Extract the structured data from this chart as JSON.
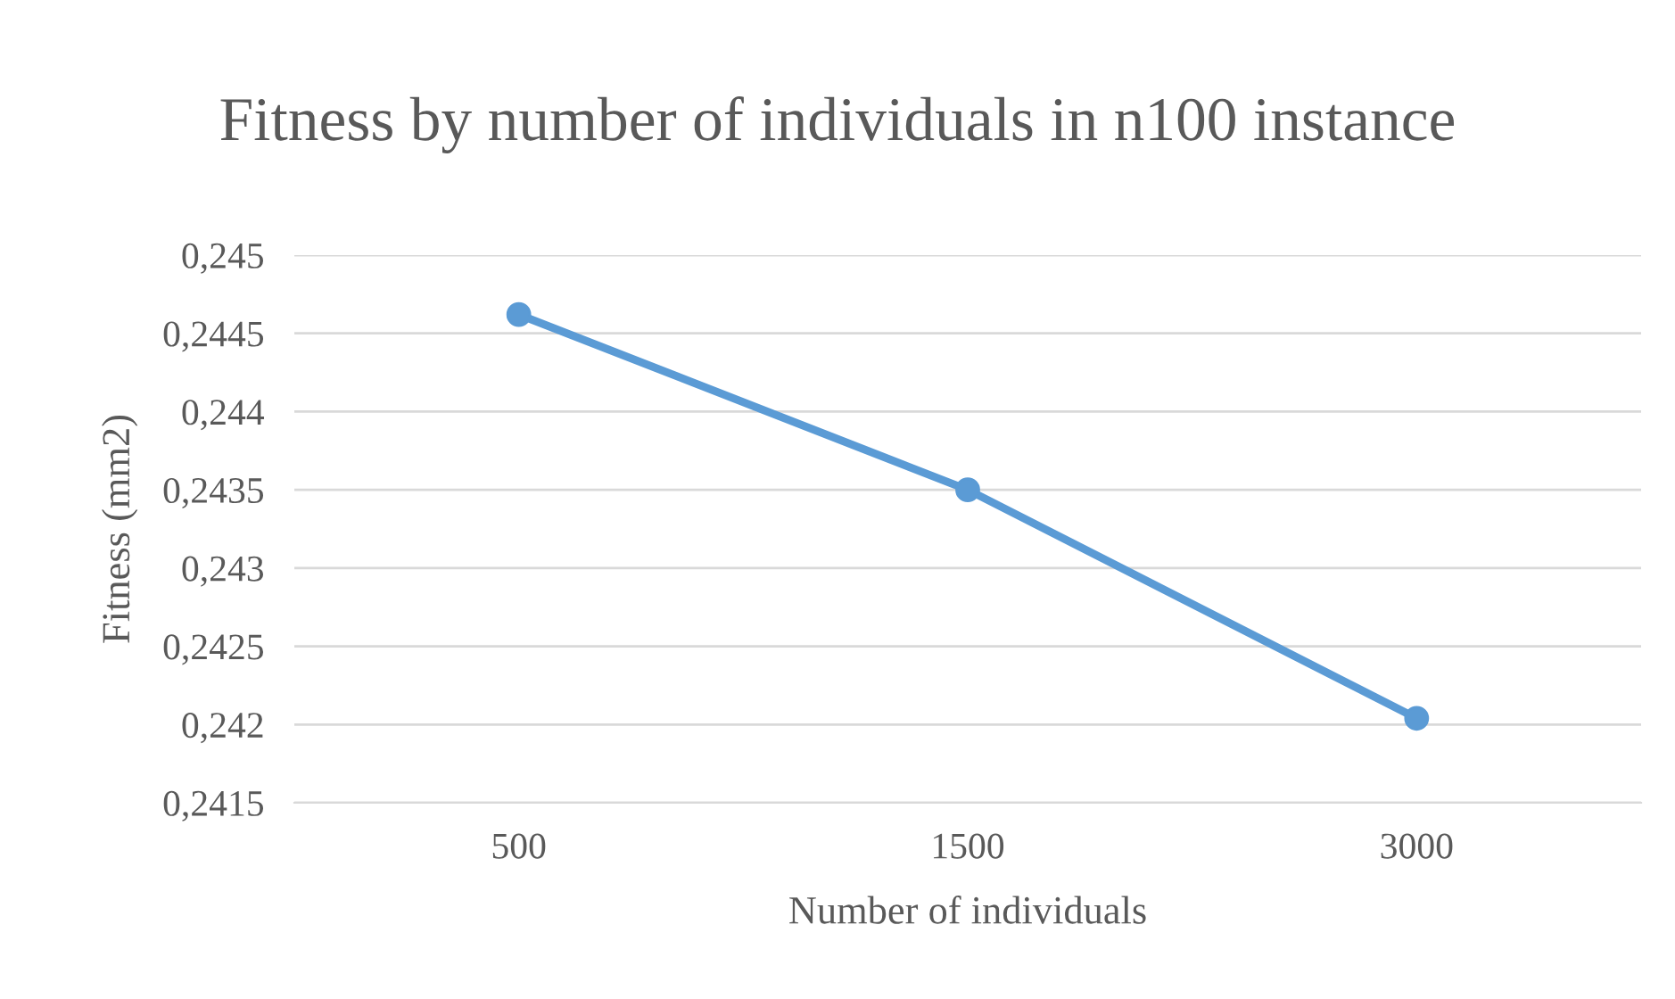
{
  "chart_data": {
    "type": "line",
    "title": "Fitness by number of individuals in n100 instance",
    "xlabel": "Number of individuals",
    "ylabel": "Fitness (mm2)",
    "categories": [
      "500",
      "1500",
      "3000"
    ],
    "series": [
      {
        "color": "#5b9bd5",
        "values": [
          0.24462,
          0.2435,
          0.24204
        ]
      }
    ],
    "ylim": [
      0.2415,
      0.245
    ],
    "yticks": [
      {
        "value": 0.2415,
        "label": "0,2415"
      },
      {
        "value": 0.242,
        "label": "0,242"
      },
      {
        "value": 0.2425,
        "label": "0,2425"
      },
      {
        "value": 0.243,
        "label": "0,243"
      },
      {
        "value": 0.2435,
        "label": "0,2435"
      },
      {
        "value": 0.244,
        "label": "0,244"
      },
      {
        "value": 0.2445,
        "label": "0,2445"
      },
      {
        "value": 0.245,
        "label": "0,245"
      }
    ],
    "grid": "y",
    "marker": "circle",
    "line_style": "solid",
    "legend": false
  }
}
